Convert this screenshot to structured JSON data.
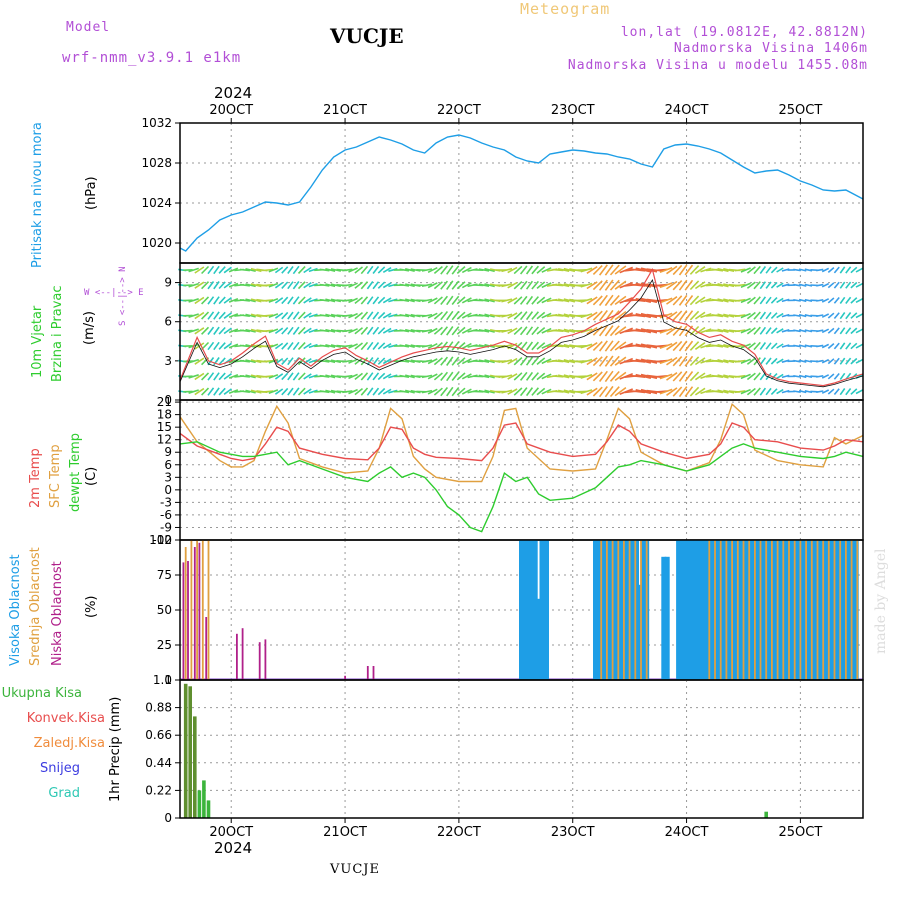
{
  "header": {
    "model_label": "Model",
    "model_name": "wrf-nmm_v3.9.1 e1km",
    "station": "VUCJE",
    "meteogram": "Meteogram",
    "lonlat": "lon,lat (19.0812E, 42.8812N)",
    "altitude": "Nadmorska Visina 1406m",
    "model_altitude": "Nadmorska Visina u modelu 1455.08m"
  },
  "footer": {
    "station": "VUCJE",
    "made_by": "made by Angel"
  },
  "timeline": {
    "year": "2024",
    "date_ticks": [
      "20OCT",
      "21OCT",
      "22OCT",
      "23OCT",
      "24OCT",
      "25OCT"
    ],
    "start_day": 19.55,
    "end_day": 25.55
  },
  "colors": {
    "pressure": "#1e9ee6",
    "temp2m": "#e84d4d",
    "sfctemp": "#e0a040",
    "dewpt": "#2ecc2e",
    "high_cloud": "#1e9ee6",
    "mid_cloud": "#e0a040",
    "low_cloud": "#b0208a",
    "precip_total": "#3cb43c",
    "precip_conv": "#e84d4d",
    "precip_frozen": "#f08c3c",
    "snow": "#3c3ce0",
    "graupel": "#2ec8b4"
  },
  "panels": {
    "pressure": {
      "label": "Pritisak na nivou mora",
      "unit": "(hPa)",
      "yticks": [
        "1020",
        "1024",
        "1028",
        "1032"
      ]
    },
    "wind": {
      "label1": "10m Vjetar",
      "label2": "Brzina i Pravac",
      "unit": "(m/s)",
      "compass": "W <--|--> E",
      "compass_ns": "S <--|--> N",
      "yticks": [
        "0",
        "3",
        "6",
        "9"
      ]
    },
    "temp": {
      "label1": "2m Temp",
      "label2": "SFC Temp",
      "label3": "dewpt Temp",
      "unit": "(C)",
      "yticks": [
        "-12",
        "-9",
        "-6",
        "-3",
        "0",
        "3",
        "6",
        "9",
        "12",
        "15",
        "18",
        "21"
      ]
    },
    "cloud": {
      "label_high": "Visoka Oblacnost",
      "label_mid": "Srednja Oblacnost",
      "label_low": "Niska Oblacnost",
      "unit": "(%)",
      "yticks": [
        "0",
        "25",
        "50",
        "75",
        "100"
      ]
    },
    "precip": {
      "legend": [
        "Ukupna Kisa",
        "Konvek.Kisa",
        "Zaledj.Kisa",
        "Snijeg",
        "Grad"
      ],
      "label": "1hr Precip (mm)",
      "yticks": [
        "0",
        "0.22",
        "0.44",
        "0.66",
        "0.88",
        "1.1"
      ]
    }
  },
  "chart_data": [
    {
      "type": "line",
      "title": "Pritisak na nivou mora",
      "ylabel": "(hPa)",
      "ylim": [
        1018,
        1032
      ],
      "series": [
        {
          "name": "Pritisak na nivou mora",
          "x": [
            19.55,
            19.6,
            19.7,
            19.8,
            19.9,
            20.0,
            20.1,
            20.2,
            20.3,
            20.4,
            20.5,
            20.6,
            20.7,
            20.8,
            20.9,
            21.0,
            21.1,
            21.2,
            21.3,
            21.4,
            21.5,
            21.6,
            21.7,
            21.8,
            21.9,
            22.0,
            22.1,
            22.2,
            22.3,
            22.4,
            22.5,
            22.6,
            22.7,
            22.8,
            22.9,
            23.0,
            23.1,
            23.2,
            23.3,
            23.4,
            23.5,
            23.6,
            23.7,
            23.8,
            23.9,
            24.0,
            24.1,
            24.2,
            24.3,
            24.4,
            24.5,
            24.6,
            24.7,
            24.8,
            24.9,
            25.0,
            25.1,
            25.2,
            25.3,
            25.4,
            25.55
          ],
          "y": [
            1019.5,
            1019.2,
            1020.5,
            1021.3,
            1022.3,
            1022.8,
            1023.1,
            1023.6,
            1024.1,
            1024.0,
            1023.8,
            1024.1,
            1025.6,
            1027.3,
            1028.6,
            1029.3,
            1029.6,
            1030.1,
            1030.6,
            1030.3,
            1029.9,
            1029.3,
            1029.0,
            1030.0,
            1030.6,
            1030.8,
            1030.5,
            1030.0,
            1029.6,
            1029.3,
            1028.6,
            1028.2,
            1028.0,
            1028.9,
            1029.1,
            1029.3,
            1029.2,
            1029.0,
            1028.9,
            1028.6,
            1028.4,
            1027.9,
            1027.6,
            1029.4,
            1029.8,
            1029.9,
            1029.7,
            1029.4,
            1029.0,
            1028.3,
            1027.6,
            1027.0,
            1027.2,
            1027.3,
            1026.8,
            1026.2,
            1025.8,
            1025.3,
            1025.2,
            1025.3,
            1024.4
          ]
        }
      ]
    },
    {
      "type": "line",
      "title": "10m Vjetar Brzina i Pravac",
      "ylabel": "(m/s)",
      "ylim": [
        0,
        10.5
      ],
      "series": [
        {
          "name": "10m Vjetar",
          "x": [
            19.55,
            19.7,
            19.8,
            19.9,
            20.0,
            20.1,
            20.2,
            20.3,
            20.4,
            20.5,
            20.6,
            20.7,
            20.8,
            20.9,
            21.0,
            21.1,
            21.2,
            21.3,
            21.4,
            21.5,
            21.6,
            21.7,
            21.8,
            21.9,
            22.0,
            22.1,
            22.2,
            22.3,
            22.4,
            22.5,
            22.6,
            22.7,
            22.8,
            22.9,
            23.0,
            23.1,
            23.2,
            23.3,
            23.4,
            23.5,
            23.6,
            23.7,
            23.8,
            23.9,
            24.0,
            24.1,
            24.2,
            24.3,
            24.4,
            24.5,
            24.6,
            24.7,
            24.8,
            24.9,
            25.0,
            25.1,
            25.2,
            25.3,
            25.4,
            25.55
          ],
          "y": [
            1.5,
            4.8,
            3.0,
            2.7,
            3.0,
            3.6,
            4.3,
            4.9,
            2.8,
            2.3,
            3.2,
            2.6,
            3.3,
            3.8,
            4.0,
            3.4,
            3.0,
            2.5,
            2.9,
            3.3,
            3.6,
            3.8,
            4.0,
            4.1,
            4.0,
            3.8,
            4.0,
            4.2,
            4.5,
            4.2,
            3.6,
            3.6,
            4.1,
            4.8,
            5.0,
            5.3,
            5.8,
            6.2,
            6.6,
            7.5,
            8.5,
            10.0,
            6.5,
            6.0,
            5.8,
            5.2,
            4.8,
            5.0,
            4.5,
            4.2,
            3.5,
            2.0,
            1.6,
            1.4,
            1.3,
            1.2,
            1.1,
            1.3,
            1.6,
            2.0
          ]
        }
      ]
    },
    {
      "type": "line",
      "title": "2m Temp / SFC Temp / dewpt Temp",
      "ylabel": "(C)",
      "ylim": [
        -12,
        21
      ],
      "series": [
        {
          "name": "2m Temp",
          "x": [
            19.55,
            19.7,
            19.9,
            20.0,
            20.1,
            20.2,
            20.3,
            20.4,
            20.5,
            20.6,
            20.8,
            21.0,
            21.2,
            21.3,
            21.4,
            21.5,
            21.6,
            21.7,
            21.8,
            22.0,
            22.2,
            22.3,
            22.4,
            22.5,
            22.6,
            22.8,
            23.0,
            23.2,
            23.3,
            23.4,
            23.5,
            23.6,
            23.8,
            24.0,
            24.2,
            24.3,
            24.4,
            24.5,
            24.6,
            24.8,
            25.0,
            25.2,
            25.3,
            25.4,
            25.55
          ],
          "y": [
            13.5,
            10.5,
            8.5,
            7.5,
            7.0,
            7.5,
            11.0,
            15.0,
            14.0,
            10.0,
            8.5,
            7.5,
            7.2,
            10.0,
            15.0,
            14.5,
            10.0,
            8.5,
            7.8,
            7.5,
            7.0,
            10.0,
            15.5,
            16.0,
            11.0,
            9.0,
            8.0,
            8.5,
            11.5,
            15.5,
            14.0,
            11.0,
            9.0,
            7.5,
            8.5,
            11.0,
            16.0,
            15.0,
            12.0,
            11.5,
            10.0,
            9.5,
            10.5,
            12.0,
            11.5
          ]
        },
        {
          "name": "SFC Temp",
          "x": [
            19.55,
            19.7,
            19.9,
            20.0,
            20.1,
            20.2,
            20.3,
            20.4,
            20.5,
            20.6,
            20.8,
            21.0,
            21.2,
            21.3,
            21.4,
            21.5,
            21.6,
            21.7,
            21.8,
            22.0,
            22.2,
            22.3,
            22.4,
            22.5,
            22.6,
            22.8,
            23.0,
            23.2,
            23.3,
            23.4,
            23.5,
            23.6,
            23.8,
            24.0,
            24.2,
            24.3,
            24.4,
            24.5,
            24.6,
            24.8,
            25.0,
            25.2,
            25.3,
            25.4,
            25.55
          ],
          "y": [
            17.5,
            11.5,
            7.0,
            5.5,
            5.5,
            7.0,
            14.0,
            20.0,
            16.0,
            7.5,
            5.5,
            4.0,
            4.5,
            10.0,
            19.5,
            17.0,
            8.0,
            5.0,
            3.0,
            2.0,
            2.0,
            8.0,
            19.0,
            19.5,
            10.0,
            5.0,
            4.5,
            5.0,
            12.0,
            19.5,
            17.0,
            9.0,
            6.0,
            4.5,
            6.5,
            12.0,
            20.5,
            18.0,
            9.5,
            7.0,
            6.0,
            5.5,
            12.5,
            11.0,
            13.0
          ]
        },
        {
          "name": "dewpt Temp",
          "x": [
            19.55,
            19.7,
            19.9,
            20.0,
            20.1,
            20.2,
            20.3,
            20.4,
            20.5,
            20.6,
            20.8,
            21.0,
            21.2,
            21.3,
            21.4,
            21.5,
            21.6,
            21.7,
            21.8,
            21.9,
            22.0,
            22.1,
            22.2,
            22.3,
            22.4,
            22.5,
            22.6,
            22.7,
            22.8,
            23.0,
            23.2,
            23.3,
            23.4,
            23.5,
            23.6,
            23.8,
            24.0,
            24.2,
            24.3,
            24.4,
            24.5,
            24.6,
            24.8,
            25.0,
            25.2,
            25.3,
            25.4,
            25.55
          ],
          "y": [
            11.0,
            11.5,
            9.0,
            8.5,
            8.0,
            8.0,
            8.5,
            9.0,
            6.0,
            7.0,
            5.0,
            3.0,
            2.0,
            4.0,
            5.5,
            3.0,
            4.0,
            3.0,
            0.0,
            -4.0,
            -6.0,
            -9.0,
            -10.0,
            -4.0,
            4.0,
            2.0,
            3.0,
            -1.0,
            -2.5,
            -2.0,
            0.5,
            3.0,
            5.5,
            6.0,
            7.0,
            6.0,
            4.5,
            6.0,
            8.0,
            10.0,
            11.0,
            10.0,
            9.0,
            8.0,
            7.5,
            8.0,
            9.0,
            8.0
          ]
        }
      ]
    },
    {
      "type": "bar",
      "title": "Visoka / Srednja / Niska Oblacnost",
      "ylabel": "(%)",
      "ylim": [
        0,
        100
      ],
      "series": [
        {
          "name": "Visoka Oblacnost",
          "x": [
            22.55,
            22.58,
            22.61,
            22.64,
            22.67,
            22.7,
            22.73,
            22.77,
            23.2,
            23.23,
            23.26,
            23.29,
            23.32,
            23.35,
            23.38,
            23.41,
            23.44,
            23.47,
            23.5,
            23.53,
            23.56,
            23.59,
            23.62,
            23.65,
            23.8,
            23.83,
            23.93,
            23.96,
            23.99,
            24.02,
            24.05,
            24.08,
            24.11,
            24.14,
            24.17,
            24.2,
            24.23,
            24.26,
            24.29,
            24.32,
            24.35,
            24.38,
            24.41,
            24.44,
            24.47,
            24.5,
            24.53,
            24.56,
            24.59,
            24.62,
            24.65,
            24.68,
            24.71,
            24.74,
            24.77,
            24.8,
            24.83,
            24.86,
            24.89,
            24.92,
            24.95,
            24.98,
            25.01,
            25.04,
            25.07,
            25.1,
            25.13,
            25.16,
            25.19,
            25.22,
            25.25,
            25.28,
            25.31,
            25.34,
            25.37,
            25.4,
            25.43,
            25.46,
            25.49
          ],
          "y": [
            100,
            100,
            100,
            100,
            100,
            58,
            100,
            100,
            100,
            100,
            100,
            100,
            100,
            100,
            100,
            100,
            100,
            100,
            100,
            100,
            100,
            68,
            100,
            100,
            88,
            88,
            100,
            100,
            100,
            100,
            100,
            100,
            100,
            100,
            100,
            100,
            100,
            100,
            100,
            100,
            100,
            100,
            100,
            100,
            100,
            100,
            100,
            100,
            100,
            100,
            100,
            100,
            100,
            100,
            100,
            100,
            100,
            100,
            100,
            100,
            100,
            100,
            100,
            100,
            100,
            100,
            100,
            100,
            100,
            100,
            100,
            100,
            100,
            100,
            100,
            100,
            100,
            100,
            100
          ]
        },
        {
          "name": "Srednja Oblacnost",
          "x": [
            19.6,
            19.65,
            19.7,
            19.75,
            19.8,
            23.25,
            23.3,
            23.35,
            23.4,
            23.45,
            23.5,
            23.55,
            23.6,
            23.65,
            24.2,
            24.25,
            24.3,
            24.35,
            24.4,
            24.45,
            24.5,
            24.55,
            24.6,
            24.65,
            24.7,
            24.75,
            24.8,
            24.85,
            24.9,
            24.95,
            25.0,
            25.05,
            25.1,
            25.15,
            25.2,
            25.25,
            25.3,
            25.35,
            25.4,
            25.45,
            25.5
          ],
          "y": [
            95,
            100,
            100,
            100,
            100,
            100,
            100,
            100,
            100,
            100,
            100,
            100,
            100,
            100,
            100,
            100,
            100,
            100,
            100,
            100,
            100,
            100,
            100,
            100,
            100,
            100,
            100,
            100,
            100,
            100,
            100,
            100,
            100,
            100,
            100,
            100,
            100,
            100,
            100,
            100,
            100
          ]
        },
        {
          "name": "Niska Oblacnost",
          "x": [
            19.58,
            19.62,
            19.68,
            19.72,
            19.78,
            20.05,
            20.1,
            20.25,
            20.3,
            21.0,
            21.2,
            21.25
          ],
          "y": [
            84,
            85,
            95,
            98,
            45,
            33,
            37,
            27,
            29,
            3,
            10,
            10
          ]
        }
      ]
    },
    {
      "type": "bar",
      "title": "1hr Precip",
      "ylabel": "(mm)",
      "ylim": [
        0,
        1.1
      ],
      "series": [
        {
          "name": "Ukupna Kisa",
          "x": [
            19.6,
            19.64,
            19.68,
            19.72,
            19.76,
            19.8,
            24.7
          ],
          "y": [
            1.07,
            1.05,
            0.81,
            0.22,
            0.3,
            0.14,
            0.05
          ]
        }
      ]
    }
  ]
}
